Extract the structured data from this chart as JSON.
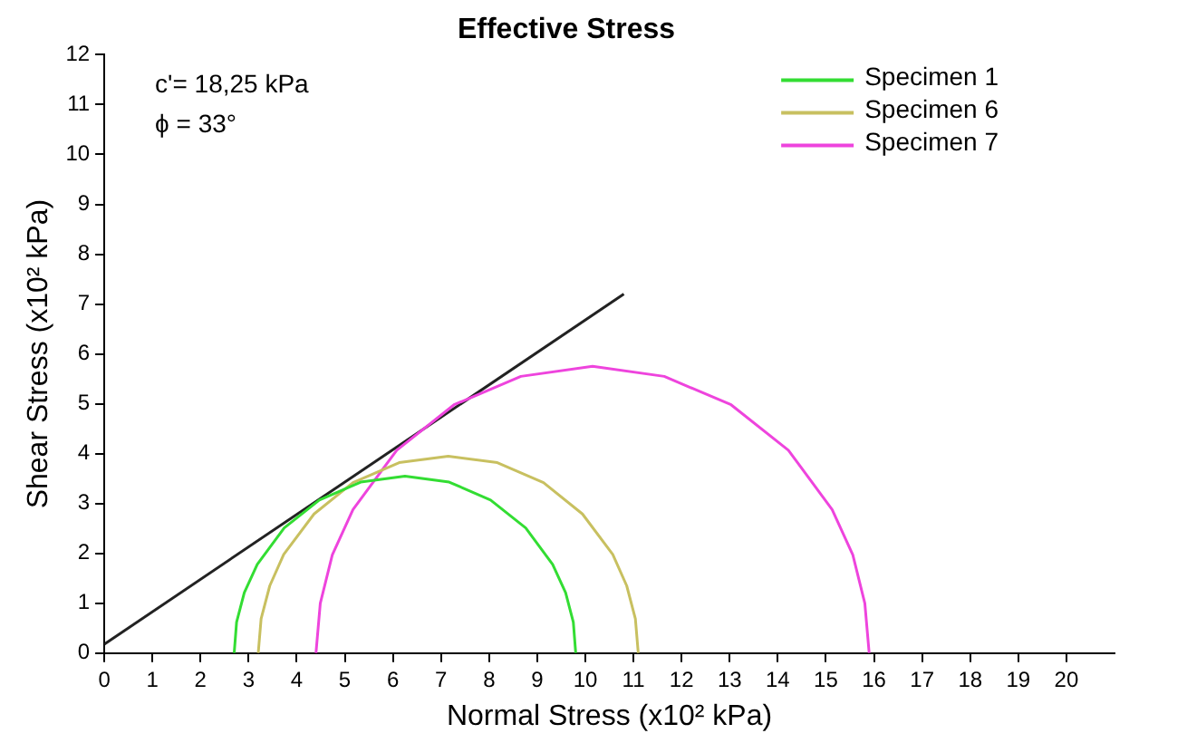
{
  "chart_data": {
    "type": "line",
    "title": "Effective Stress",
    "xlabel": "Normal Stress (x10² kPa)",
    "ylabel": "Shear Stress (x10² kPa)",
    "xlim": [
      0,
      21
    ],
    "xticks": [
      0,
      1,
      2,
      3,
      4,
      5,
      6,
      7,
      8,
      9,
      10,
      11,
      12,
      13,
      14,
      15,
      16,
      17,
      18,
      19,
      20
    ],
    "ylim": [
      0,
      12
    ],
    "yticks": [
      0,
      1,
      2,
      3,
      4,
      5,
      6,
      7,
      8,
      9,
      10,
      11,
      12
    ],
    "grid": false,
    "legend": "top right",
    "marker": "none",
    "line_style": "solid",
    "annotations": [
      "c'= 18,25 kPa",
      "ϕ = 33°"
    ],
    "series": [
      {
        "name": "Specimen 1",
        "color": "#33dd33",
        "x": [
          2.7,
          2.75,
          2.91,
          3.18,
          3.74,
          4.47,
          5.33,
          6.25,
          7.17,
          8.03,
          8.76,
          9.32,
          9.59,
          9.75,
          9.8
        ],
        "values": [
          0,
          0.62,
          1.21,
          1.78,
          2.51,
          3.07,
          3.43,
          3.55,
          3.43,
          3.07,
          2.51,
          1.78,
          1.21,
          0.62,
          0
        ]
      },
      {
        "name": "Specimen 6",
        "color": "#c8c060",
        "x": [
          3.2,
          3.26,
          3.44,
          3.73,
          4.36,
          5.17,
          6.13,
          7.15,
          8.17,
          9.13,
          9.94,
          10.57,
          10.86,
          11.04,
          11.1
        ],
        "values": [
          0,
          0.69,
          1.35,
          1.98,
          2.79,
          3.42,
          3.82,
          3.95,
          3.82,
          3.42,
          2.79,
          1.98,
          1.35,
          0.69,
          0
        ]
      },
      {
        "name": "Specimen 7",
        "color": "#ee44dd",
        "x": [
          4.4,
          4.49,
          4.74,
          5.17,
          6.08,
          7.27,
          8.66,
          10.15,
          11.64,
          13.03,
          14.22,
          15.13,
          15.56,
          15.81,
          15.9
        ],
        "values": [
          0,
          1.0,
          1.97,
          2.88,
          4.07,
          4.98,
          5.55,
          5.75,
          5.55,
          4.98,
          4.07,
          2.88,
          1.97,
          1.0,
          0
        ]
      },
      {
        "color": "#222222",
        "x": [
          0,
          10.8
        ],
        "values": [
          0.18,
          7.2
        ]
      }
    ]
  }
}
